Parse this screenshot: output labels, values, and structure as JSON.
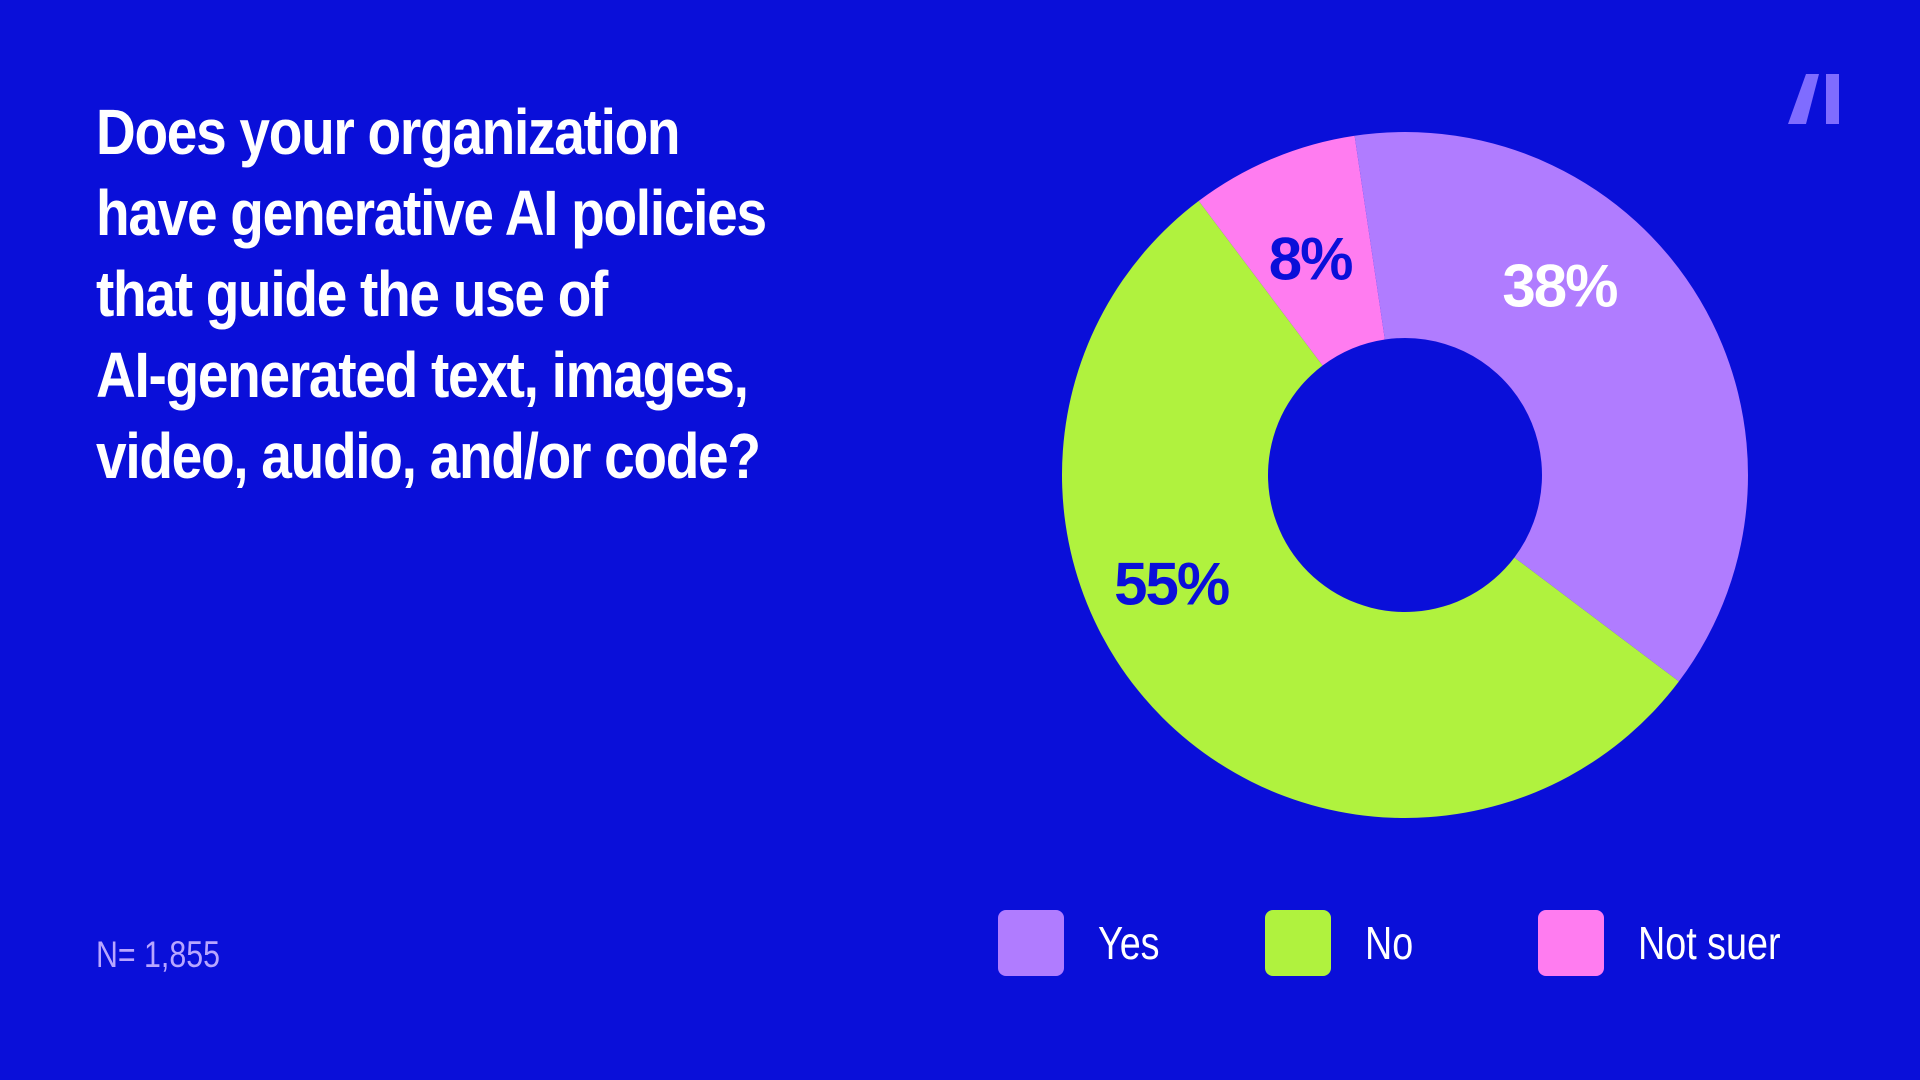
{
  "colors": {
    "background": "#0a0fd9",
    "yes": "#b07cff",
    "no": "#b0f23e",
    "not_sure": "#ff7cf0",
    "dark_label": "#0a0fd9",
    "white_label": "#ffffff",
    "logo": "#7f6cff"
  },
  "question": [
    "Does your organization",
    "have generative AI policies",
    "that guide the use of",
    "AI-generated text, images,",
    "video, audio, and/or code?"
  ],
  "sample_label": "N= 1,855",
  "logo_icon": "ai-logo-icon",
  "chart_data": {
    "type": "pie",
    "donut": true,
    "title": "Does your organization have generative AI policies that guide the use of AI-generated text, images, video, audio, and/or code?",
    "slices": [
      {
        "label": "No",
        "value": 55,
        "display": "55%",
        "color": "#b0f23e",
        "label_color": "#0a0fd9"
      },
      {
        "label": "Not suer",
        "value": 8,
        "display": "8%",
        "color": "#ff7cf0",
        "label_color": "#0a0fd9"
      },
      {
        "label": "Yes",
        "value": 38,
        "display": "38%",
        "color": "#b07cff",
        "label_color": "#ffffff"
      }
    ],
    "legend": [
      {
        "label": "Yes",
        "color": "#b07cff"
      },
      {
        "label": "No",
        "color": "#b0f23e"
      },
      {
        "label": "Not suer",
        "color": "#ff7cf0"
      }
    ],
    "legend_position": "bottom-right"
  }
}
